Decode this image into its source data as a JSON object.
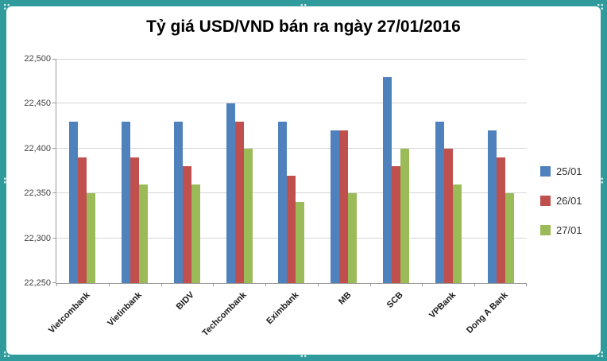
{
  "window": {
    "frame_color": "#2f9b9d"
  },
  "chart_data": {
    "type": "bar",
    "title": "Tỷ giá USD/VND bán ra ngày 27/01/2016",
    "categories": [
      "Vietcombank",
      "Vietinbank",
      "BIDV",
      "Techcombank",
      "Eximbank",
      "MB",
      "SCB",
      "VPBank",
      "Dong A Bank"
    ],
    "series": [
      {
        "name": "25/01",
        "color": "#4F81BD",
        "values": [
          22430,
          22430,
          22430,
          22450,
          22430,
          22420,
          22480,
          22430,
          22420
        ]
      },
      {
        "name": "26/01",
        "color": "#C0504D",
        "values": [
          22390,
          22390,
          22380,
          22430,
          22370,
          22420,
          22380,
          22400,
          22390
        ]
      },
      {
        "name": "27/01",
        "color": "#9BBB59",
        "values": [
          22350,
          22360,
          22360,
          22400,
          22340,
          22350,
          22400,
          22360,
          22350
        ]
      }
    ],
    "ylim": [
      22250,
      22500
    ],
    "ytick_step": 50,
    "ytick_labels": [
      "22,250",
      "22,300",
      "22,350",
      "22,400",
      "22,450",
      "22,500"
    ],
    "xlabel": "",
    "ylabel": "",
    "grid": true,
    "legend_position": "right"
  }
}
